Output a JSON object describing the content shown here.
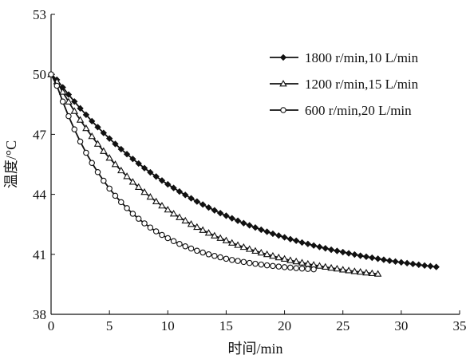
{
  "chart_data": {
    "type": "line",
    "title": "",
    "xlabel": "时间/min",
    "ylabel": "温度/°C",
    "xlim": [
      0,
      35
    ],
    "ylim": [
      38,
      53
    ],
    "xticks": [
      0,
      5,
      10,
      15,
      20,
      25,
      30,
      35
    ],
    "yticks": [
      38,
      41,
      44,
      47,
      50,
      53
    ],
    "grid": false,
    "legend_position": "top-right",
    "series": [
      {
        "name": "1800 r/min,10 L/min",
        "marker": "diamond-filled",
        "x": [
          0,
          0.5,
          1,
          1.5,
          2,
          2.5,
          3,
          3.5,
          4,
          4.5,
          5,
          5.5,
          6,
          6.5,
          7,
          7.5,
          8,
          8.5,
          9,
          9.5,
          10,
          10.5,
          11,
          11.5,
          12,
          12.5,
          13,
          13.5,
          14,
          14.5,
          15,
          15.5,
          16,
          16.5,
          17,
          17.5,
          18,
          18.5,
          19,
          19.5,
          20,
          20.5,
          21,
          21.5,
          22,
          22.5,
          23,
          23.5,
          24,
          24.5,
          25,
          25.5,
          26,
          26.5,
          27,
          27.5,
          28,
          28.5,
          29,
          29.5,
          30,
          30.5,
          31,
          31.5,
          32,
          32.5,
          33
        ],
        "y": [
          50.0,
          49.73,
          49.35,
          48.99,
          48.64,
          48.3,
          47.98,
          47.66,
          47.36,
          47.07,
          46.79,
          46.52,
          46.26,
          46.01,
          45.77,
          45.54,
          45.31,
          45.1,
          44.89,
          44.69,
          44.5,
          44.32,
          44.14,
          43.97,
          43.8,
          43.64,
          43.49,
          43.34,
          43.2,
          43.06,
          42.93,
          42.8,
          42.68,
          42.56,
          42.45,
          42.34,
          42.23,
          42.13,
          42.03,
          41.94,
          41.85,
          41.76,
          41.68,
          41.59,
          41.52,
          41.44,
          41.37,
          41.3,
          41.23,
          41.17,
          41.11,
          41.05,
          40.99,
          40.93,
          40.88,
          40.83,
          40.78,
          40.73,
          40.68,
          40.64,
          40.6,
          40.56,
          40.52,
          40.48,
          40.44,
          40.41,
          40.37
        ]
      },
      {
        "name": "1200 r/min,15 L/min",
        "marker": "triangle-open",
        "x": [
          0,
          0.5,
          1,
          1.5,
          2,
          2.5,
          3,
          3.5,
          4,
          4.5,
          5,
          5.5,
          6,
          6.5,
          7,
          7.5,
          8,
          8.5,
          9,
          9.5,
          10,
          10.5,
          11,
          11.5,
          12,
          12.5,
          13,
          13.5,
          14,
          14.5,
          15,
          15.5,
          16,
          16.5,
          17,
          17.5,
          18,
          18.5,
          19,
          19.5,
          20,
          20.5,
          21,
          21.5,
          22,
          22.5,
          23,
          23.5,
          24,
          24.5,
          25,
          25.5,
          26,
          26.5,
          27,
          27.5,
          28
        ],
        "y": [
          50.0,
          49.64,
          49.12,
          48.63,
          48.16,
          47.72,
          47.3,
          46.9,
          46.52,
          46.16,
          45.82,
          45.5,
          45.19,
          44.9,
          44.62,
          44.36,
          44.11,
          43.87,
          43.64,
          43.43,
          43.23,
          43.03,
          42.85,
          42.68,
          42.51,
          42.36,
          42.21,
          42.07,
          41.93,
          41.81,
          41.69,
          41.57,
          41.46,
          41.36,
          41.26,
          41.17,
          41.08,
          41.0,
          40.92,
          40.84,
          40.77,
          40.7,
          40.64,
          40.58,
          40.52,
          40.47,
          40.42,
          40.37,
          40.32,
          40.28,
          40.23,
          40.19,
          40.15,
          40.12,
          40.08,
          40.05,
          40.02
        ]
      },
      {
        "name": "600 r/min,20 L/min",
        "marker": "circle-open",
        "x": [
          0,
          0.5,
          1,
          1.5,
          2,
          2.5,
          3,
          3.5,
          4,
          4.5,
          5,
          5.5,
          6,
          6.5,
          7,
          7.5,
          8,
          8.5,
          9,
          9.5,
          10,
          10.5,
          11,
          11.5,
          12,
          12.5,
          13,
          13.5,
          14,
          14.5,
          15,
          15.5,
          16,
          16.5,
          17,
          17.5,
          18,
          18.5,
          19,
          19.5,
          20,
          20.5,
          21,
          21.5,
          22,
          22.5
        ],
        "y": [
          50.0,
          49.43,
          48.64,
          47.91,
          47.25,
          46.64,
          46.08,
          45.57,
          45.11,
          44.68,
          44.29,
          43.93,
          43.61,
          43.31,
          43.03,
          42.78,
          42.55,
          42.34,
          42.15,
          41.97,
          41.81,
          41.66,
          41.52,
          41.4,
          41.29,
          41.18,
          41.09,
          41.0,
          40.92,
          40.85,
          40.78,
          40.72,
          40.67,
          40.62,
          40.57,
          40.53,
          40.49,
          40.45,
          40.42,
          40.39,
          40.36,
          40.34,
          40.31,
          40.29,
          40.27,
          40.25
        ]
      }
    ]
  }
}
